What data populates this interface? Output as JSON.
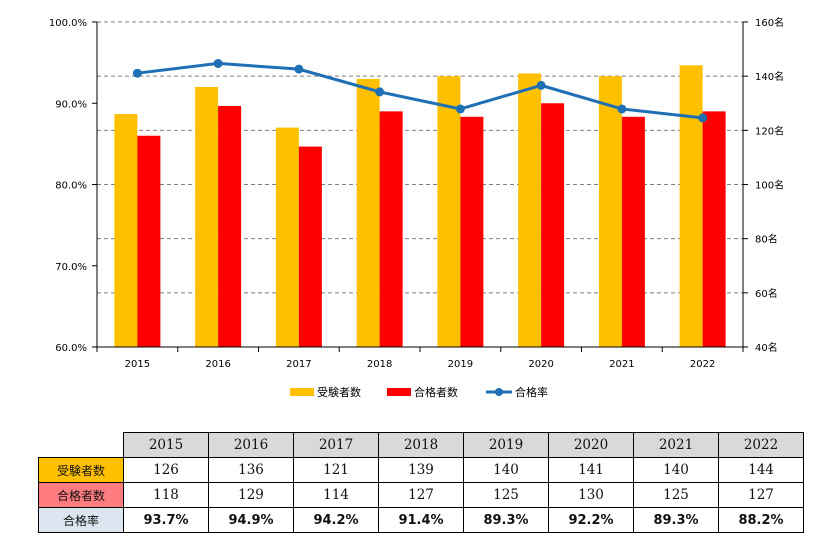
{
  "chart_data": {
    "type": "bar",
    "categories": [
      "2015",
      "2016",
      "2017",
      "2018",
      "2019",
      "2020",
      "2021",
      "2022"
    ],
    "series": [
      {
        "name": "受験者数",
        "kind": "bar",
        "axis": "right",
        "color": "#ffc000",
        "values": [
          126,
          136,
          121,
          139,
          140,
          141,
          140,
          144
        ]
      },
      {
        "name": "合格者数",
        "kind": "bar",
        "axis": "right",
        "color": "#ff0000",
        "values": [
          118,
          129,
          114,
          127,
          125,
          130,
          125,
          127
        ]
      },
      {
        "name": "合格率",
        "kind": "line",
        "axis": "left",
        "color": "#1f6fb4",
        "values": [
          93.7,
          94.9,
          94.2,
          91.4,
          89.3,
          92.2,
          89.3,
          88.2
        ]
      }
    ],
    "left_axis": {
      "ylim": [
        60,
        100
      ],
      "ticks": [
        "60.0%",
        "70.0%",
        "80.0%",
        "90.0%",
        "100.0%"
      ]
    },
    "right_axis": {
      "ylim": [
        40,
        160
      ],
      "ticks": [
        "40名",
        "60名",
        "80名",
        "100名",
        "120名",
        "140名",
        "160名"
      ]
    },
    "grid": "dashed horizontal",
    "legend": "bottom"
  },
  "table": {
    "headers": [
      "2015",
      "2016",
      "2017",
      "2018",
      "2019",
      "2020",
      "2021",
      "2022"
    ],
    "rows": [
      {
        "label": "受験者数",
        "color": "#ffc000",
        "values": [
          "126",
          "136",
          "121",
          "139",
          "140",
          "141",
          "140",
          "144"
        ]
      },
      {
        "label": "合格者数",
        "color": "#ff7c80",
        "values": [
          "118",
          "129",
          "114",
          "127",
          "125",
          "130",
          "125",
          "127"
        ]
      },
      {
        "label": "合格率",
        "color": "#dce6f1",
        "values": [
          "93.7%",
          "94.9%",
          "94.2%",
          "91.4%",
          "89.3%",
          "92.2%",
          "89.3%",
          "88.2%"
        ]
      }
    ]
  }
}
